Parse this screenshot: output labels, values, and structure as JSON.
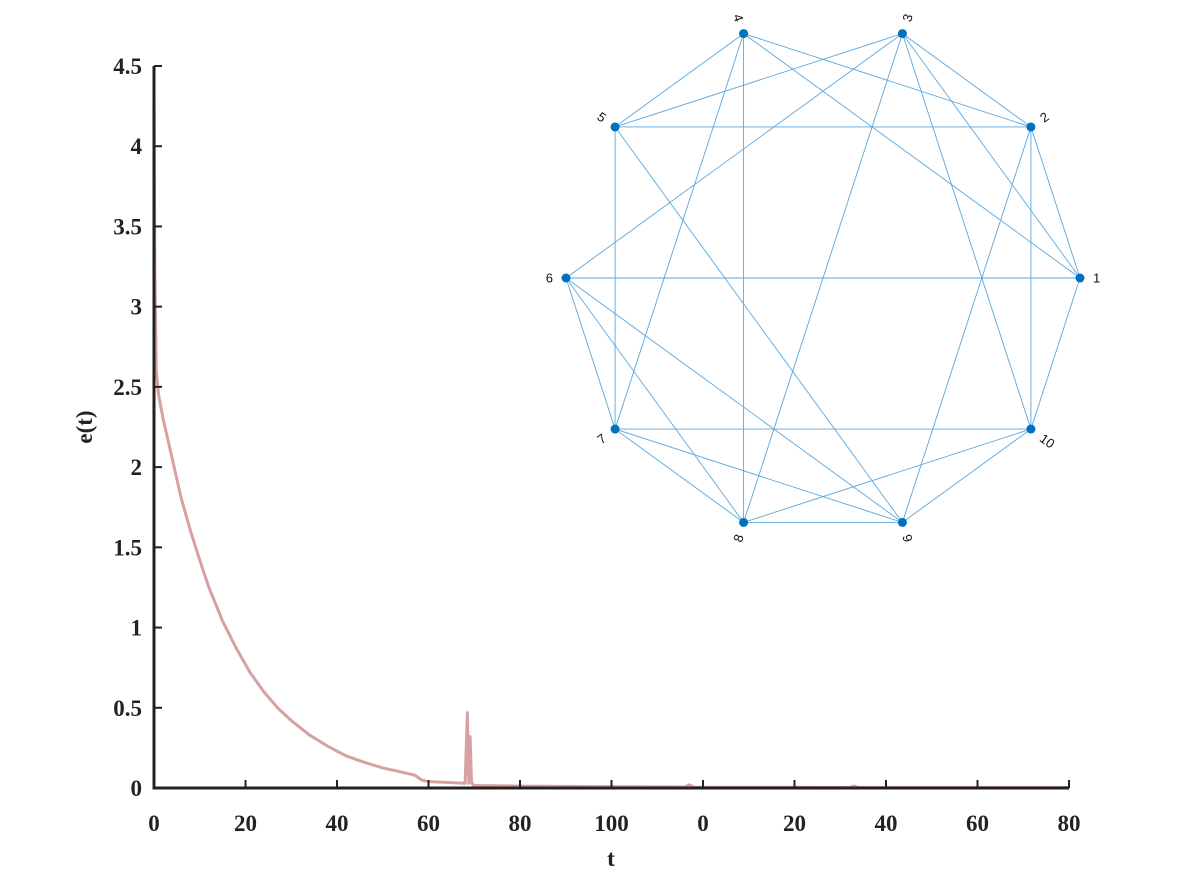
{
  "chart_data": [
    {
      "type": "line",
      "xlabel": "t",
      "ylabel": "e(t)",
      "x": [
        0,
        0.2,
        0.5,
        1,
        2,
        4,
        6,
        8,
        10,
        12,
        15,
        18,
        21,
        24,
        27,
        30,
        34,
        38,
        42,
        46,
        50,
        54,
        57,
        58.5,
        60,
        64,
        68,
        68.5,
        68.8,
        69.1,
        69.4,
        69.7,
        70.3,
        72,
        80,
        90,
        100,
        110,
        116,
        117,
        118,
        125,
        140,
        152,
        153,
        154,
        170,
        185,
        200
      ],
      "series": [
        {
          "color": "#d9a0a0",
          "values": [
            4.3,
            3.2,
            2.6,
            2.45,
            2.3,
            2.05,
            1.8,
            1.6,
            1.42,
            1.25,
            1.04,
            0.87,
            0.72,
            0.6,
            0.5,
            0.42,
            0.33,
            0.26,
            0.2,
            0.16,
            0.125,
            0.1,
            0.08,
            0.05,
            0.04,
            0.035,
            0.03,
            0.47,
            0.03,
            0.32,
            0.04,
            0.02,
            0.015,
            0.015,
            0.012,
            0.01,
            0.008,
            0.007,
            0.006,
            0.02,
            0.005,
            0.004,
            0.004,
            0.003,
            0.012,
            0.003,
            0.002,
            0.002,
            0.002
          ]
        }
      ],
      "xlim": [
        0,
        200
      ],
      "xticks": [
        0,
        20,
        40,
        60,
        80,
        100,
        {
          "value": 120,
          "label": "0"
        },
        {
          "value": 140,
          "label": "20"
        },
        {
          "value": 160,
          "label": "40"
        },
        {
          "value": 180,
          "label": "60"
        },
        {
          "value": 200,
          "label": "80"
        }
      ],
      "ylim": [
        0,
        4.5
      ],
      "yticks": [
        0,
        0.5,
        1,
        1.5,
        2,
        2.5,
        3,
        3.5,
        4,
        4.5
      ]
    },
    {
      "type": "graph",
      "node_color": "#0072bd",
      "edge_color": "#5aa7de",
      "nodes": [
        "1",
        "2",
        "3",
        "4",
        "5",
        "6",
        "7",
        "8",
        "9",
        "10"
      ]
    }
  ]
}
